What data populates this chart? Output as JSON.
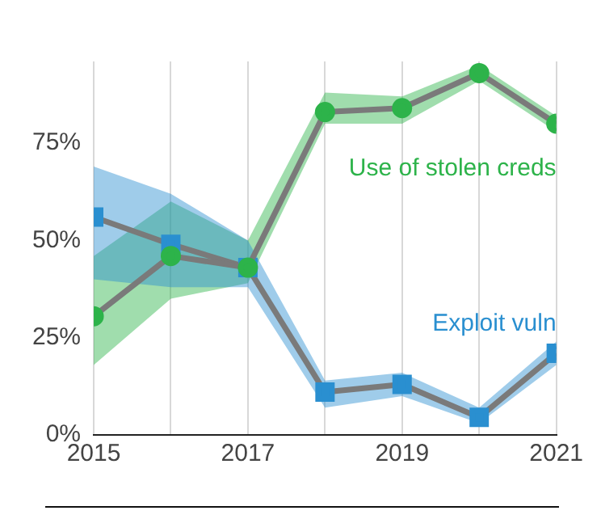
{
  "chart_data": {
    "type": "line",
    "x": [
      2015,
      2016,
      2017,
      2018,
      2019,
      2020,
      2021
    ],
    "series": [
      {
        "name": "Use of stolen creds",
        "color": "#2db34a",
        "marker": "circle",
        "values": [
          30.5,
          46,
          43,
          83,
          84,
          93,
          80
        ],
        "lower": [
          18,
          35,
          39,
          80,
          80,
          91,
          78
        ],
        "upper": [
          46,
          60,
          50,
          88,
          87,
          95,
          82
        ]
      },
      {
        "name": "Exploit vuln",
        "color": "#2a8fd0",
        "marker": "square",
        "values": [
          56,
          49,
          43,
          11,
          13,
          4.5,
          21
        ],
        "lower": [
          40,
          38,
          38,
          7,
          10,
          3,
          18
        ],
        "upper": [
          69,
          62,
          50,
          14,
          16,
          7,
          24
        ]
      }
    ],
    "xlim": [
      2015,
      2021
    ],
    "xticks": [
      2015,
      {
        "value": 2016,
        "label": null
      },
      2017,
      {
        "value": 2018,
        "label": null
      },
      2019,
      {
        "value": 2020,
        "label": null
      },
      2021
    ],
    "ylim": [
      0,
      96
    ],
    "yticks": [
      {
        "value": 0,
        "label": "0%"
      },
      {
        "value": 25,
        "label": "25%"
      },
      {
        "value": 50,
        "label": "50%"
      },
      {
        "value": 75,
        "label": "75%"
      }
    ],
    "grid": "x",
    "legend": false,
    "line_style": "solid"
  }
}
